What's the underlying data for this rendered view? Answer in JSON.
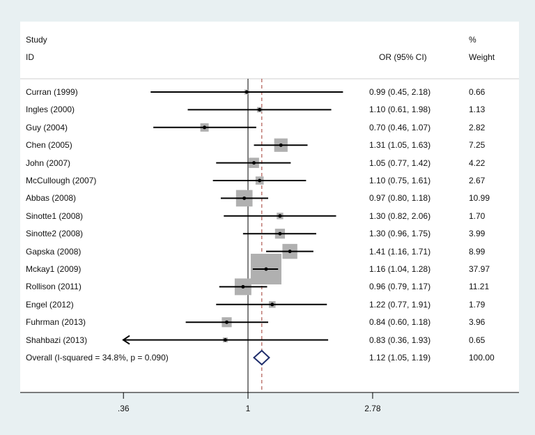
{
  "chart_data": {
    "type": "forest",
    "x_scale": "log",
    "xlim": [
      0.2723,
      3.63
    ],
    "x_ticks": [
      {
        "value": 0.36,
        "label": ".36"
      },
      {
        "value": 1,
        "label": "1"
      },
      {
        "value": 2.78,
        "label": "2.78"
      }
    ],
    "null_line": 1,
    "pooled_line": 1.12,
    "headers": {
      "study_line1": "Study",
      "study_line2": "ID",
      "or": "OR (95% CI)",
      "weight_line1": "%",
      "weight_line2": "Weight"
    },
    "studies": [
      {
        "label": "Curran (1999)",
        "or": 0.99,
        "lo": 0.45,
        "hi": 2.18,
        "ci_text": "0.99 (0.45, 2.18)",
        "weight": 0.66,
        "weight_text": "0.66"
      },
      {
        "label": "Ingles (2000)",
        "or": 1.1,
        "lo": 0.61,
        "hi": 1.98,
        "ci_text": "1.10 (0.61, 1.98)",
        "weight": 1.13,
        "weight_text": "1.13"
      },
      {
        "label": "Guy (2004)",
        "or": 0.7,
        "lo": 0.46,
        "hi": 1.07,
        "ci_text": "0.70 (0.46, 1.07)",
        "weight": 2.82,
        "weight_text": "2.82"
      },
      {
        "label": "Chen (2005)",
        "or": 1.31,
        "lo": 1.05,
        "hi": 1.63,
        "ci_text": "1.31 (1.05, 1.63)",
        "weight": 7.25,
        "weight_text": "7.25"
      },
      {
        "label": "John (2007)",
        "or": 1.05,
        "lo": 0.77,
        "hi": 1.42,
        "ci_text": "1.05 (0.77, 1.42)",
        "weight": 4.22,
        "weight_text": "4.22"
      },
      {
        "label": "McCullough (2007)",
        "or": 1.1,
        "lo": 0.75,
        "hi": 1.61,
        "ci_text": "1.10 (0.75, 1.61)",
        "weight": 2.67,
        "weight_text": "2.67"
      },
      {
        "label": "Abbas (2008)",
        "or": 0.97,
        "lo": 0.8,
        "hi": 1.18,
        "ci_text": "0.97 (0.80, 1.18)",
        "weight": 10.99,
        "weight_text": "10.99"
      },
      {
        "label": "Sinotte1 (2008)",
        "or": 1.3,
        "lo": 0.82,
        "hi": 2.06,
        "ci_text": "1.30 (0.82, 2.06)",
        "weight": 1.7,
        "weight_text": "1.70"
      },
      {
        "label": "Sinotte2 (2008)",
        "or": 1.3,
        "lo": 0.96,
        "hi": 1.75,
        "ci_text": "1.30 (0.96, 1.75)",
        "weight": 3.99,
        "weight_text": "3.99"
      },
      {
        "label": "Gapska (2008)",
        "or": 1.41,
        "lo": 1.16,
        "hi": 1.71,
        "ci_text": "1.41 (1.16, 1.71)",
        "weight": 8.99,
        "weight_text": "8.99"
      },
      {
        "label": "Mckay1 (2009)",
        "or": 1.16,
        "lo": 1.04,
        "hi": 1.28,
        "ci_text": "1.16 (1.04, 1.28)",
        "weight": 37.97,
        "weight_text": "37.97"
      },
      {
        "label": "Rollison (2011)",
        "or": 0.96,
        "lo": 0.79,
        "hi": 1.17,
        "ci_text": "0.96 (0.79, 1.17)",
        "weight": 11.21,
        "weight_text": "11.21"
      },
      {
        "label": "Engel (2012)",
        "or": 1.22,
        "lo": 0.77,
        "hi": 1.91,
        "ci_text": "1.22 (0.77, 1.91)",
        "weight": 1.79,
        "weight_text": "1.79"
      },
      {
        "label": "Fuhrman (2013)",
        "or": 0.84,
        "lo": 0.6,
        "hi": 1.18,
        "ci_text": "0.84 (0.60, 1.18)",
        "weight": 3.96,
        "weight_text": "3.96"
      },
      {
        "label": "Shahbazi (2013)",
        "or": 0.83,
        "lo": 0.36,
        "hi": 1.93,
        "ci_text": "0.83 (0.36, 1.93)",
        "weight": 0.65,
        "weight_text": "0.65",
        "lo_truncated": true
      }
    ],
    "overall": {
      "label": "Overall  (I-squared = 34.8%, p = 0.090)",
      "or": 1.12,
      "lo": 1.05,
      "hi": 1.19,
      "ci_text": "1.12 (1.05, 1.19)",
      "weight_text": "100.00"
    },
    "colors": {
      "box": "#b0b0b0",
      "diamond": "#1f2d6b",
      "pooled_line": "#a0382e",
      "background": "#e8f0f2"
    }
  }
}
